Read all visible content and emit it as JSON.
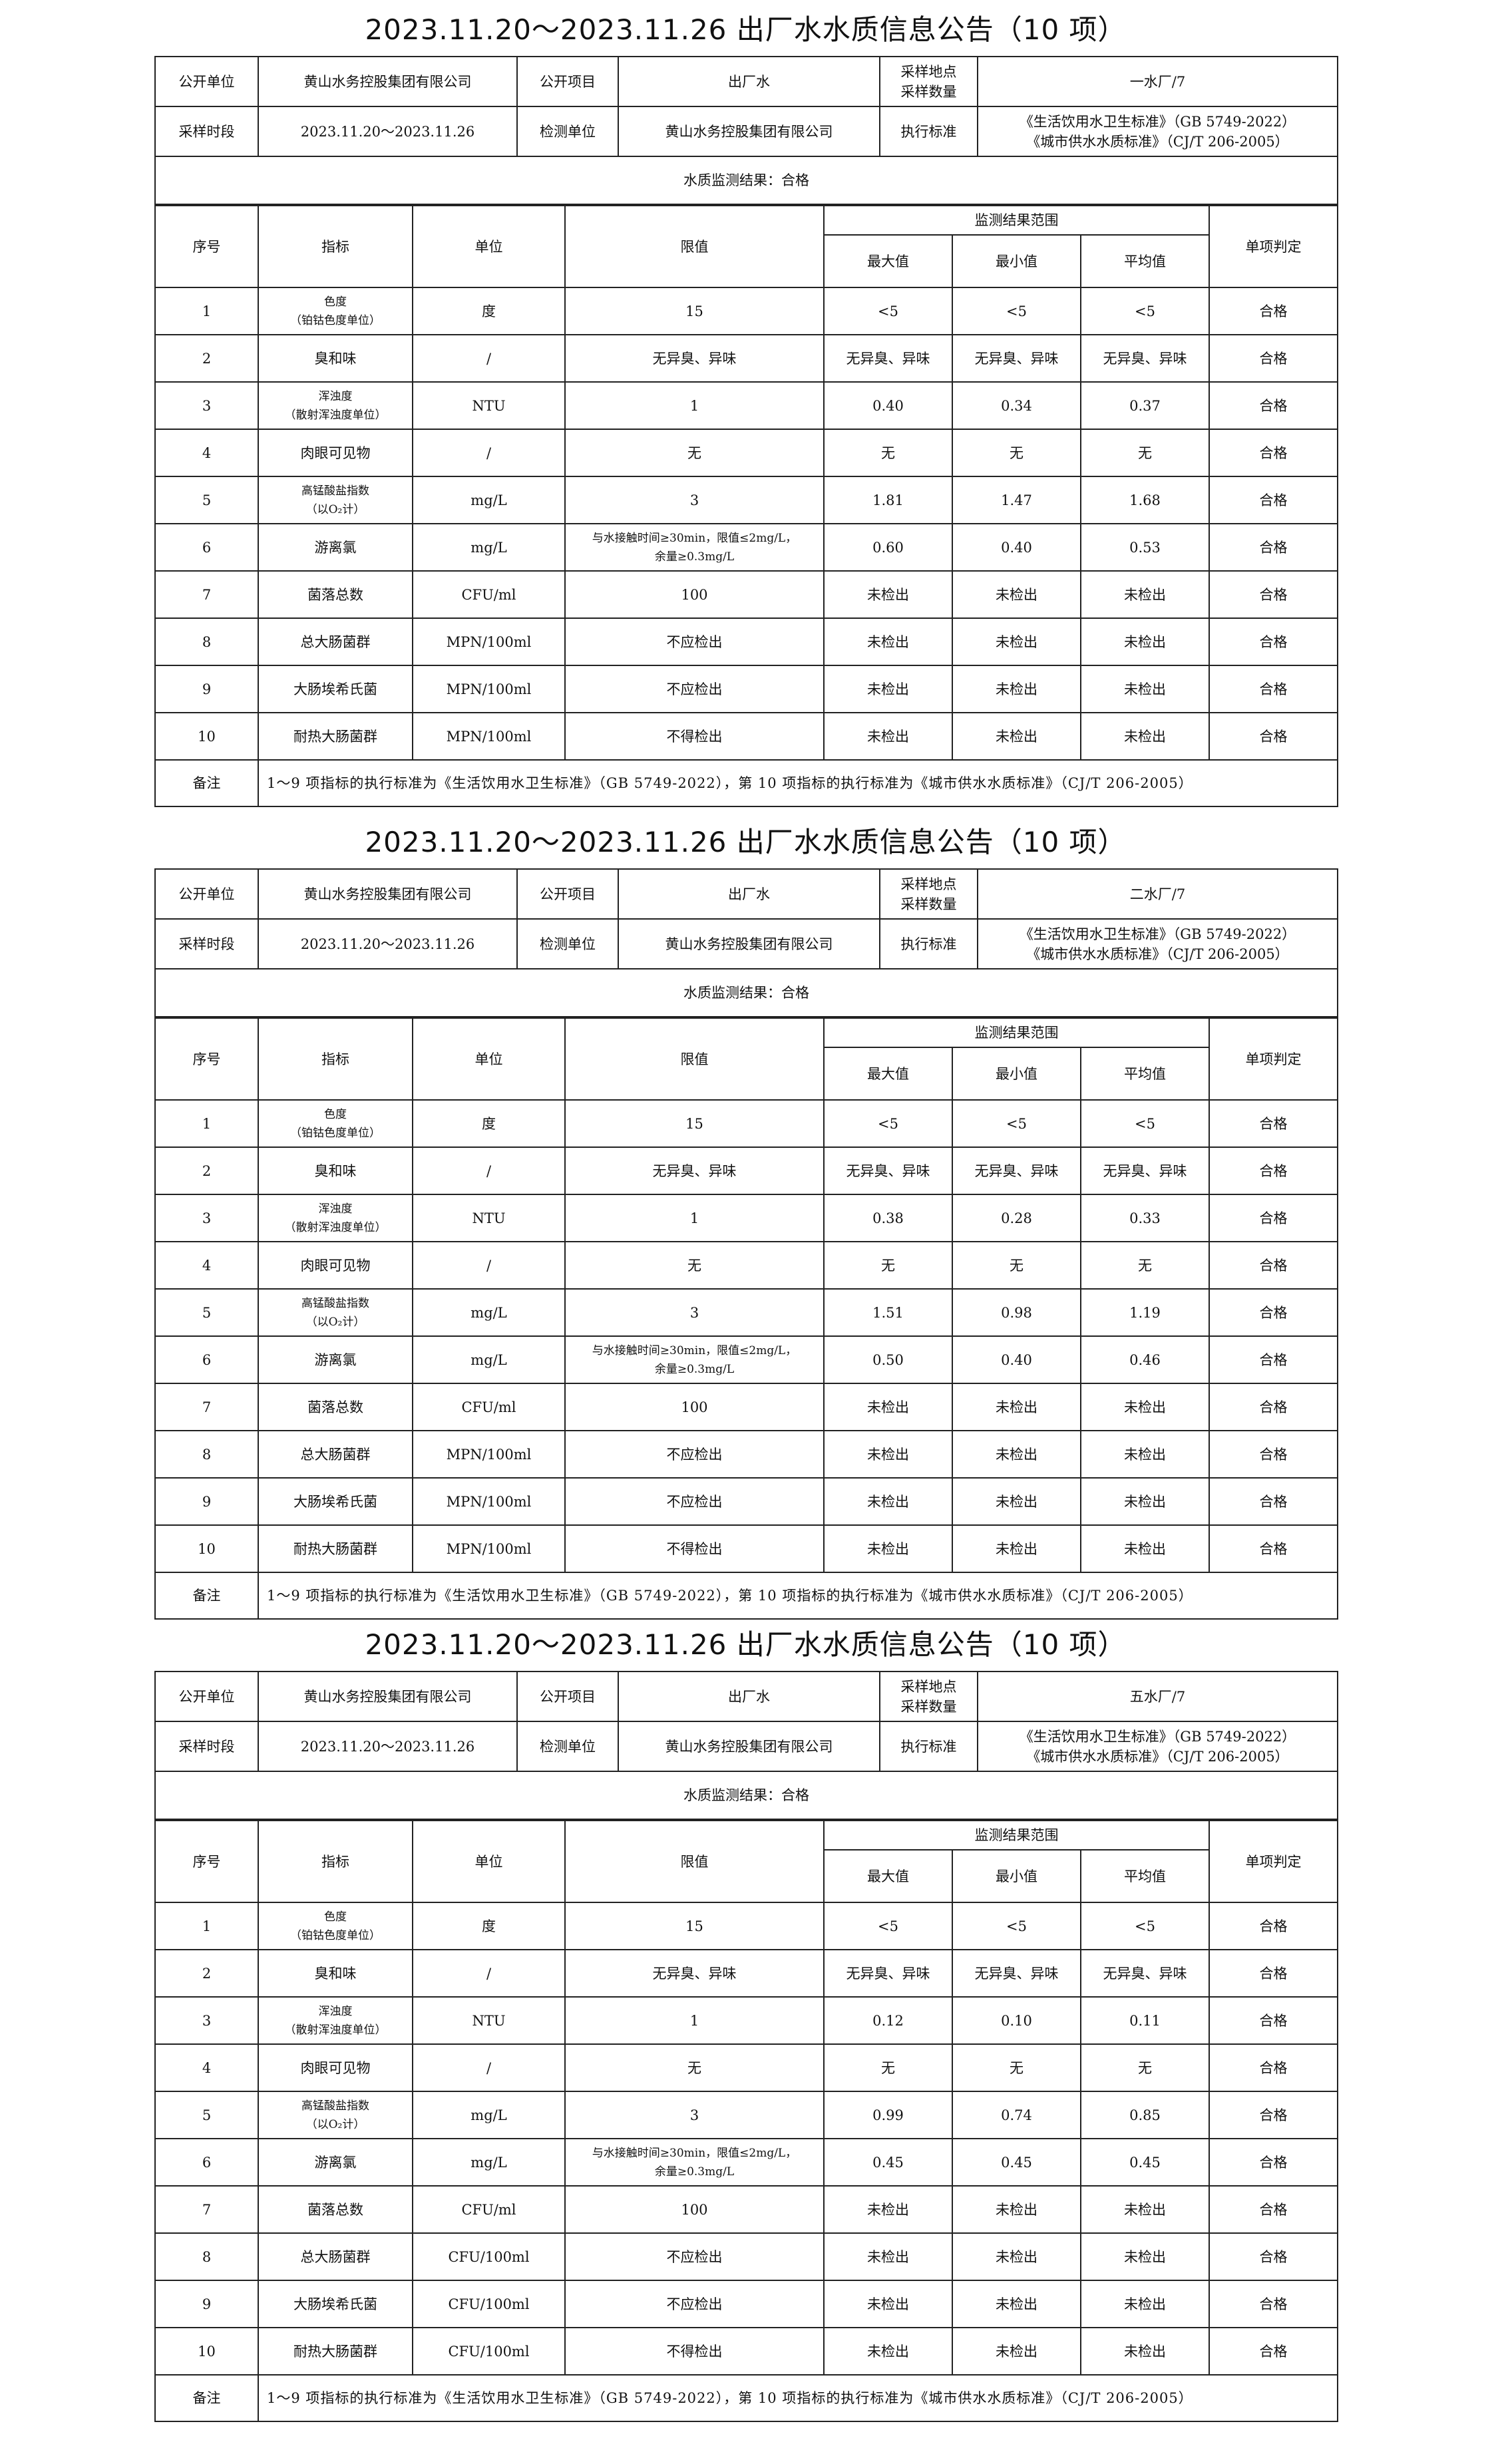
{
  "reports": [
    {
      "title": "2023.11.20～2023.11.26 出厂水水质信息公告（10 项）",
      "info": {
        "publish_unit_label": "公开单位",
        "publish_unit": "黄山水务控股集团有限公司",
        "publish_item_label": "公开项目",
        "publish_item": "出厂水",
        "sample_site_label": "采样地点\n采样数量",
        "sample_site": "一水厂/7",
        "sample_period_label": "采样时段",
        "sample_period": "2023.11.20～2023.11.26",
        "test_unit_label": "检测单位",
        "test_unit": "黄山水务控股集团有限公司",
        "standard_label": "执行标准",
        "standard": "《生活饮用水卫生标准》（GB 5749-2022）\n《城市供水水质标准》（CJ/T 206-2005）"
      },
      "result": "水质监测结果：合格",
      "headers": {
        "no": "序号",
        "indicator": "指标",
        "unit": "单位",
        "limit": "限值",
        "range": "监测结果范围",
        "max": "最大值",
        "min": "最小值",
        "avg": "平均值",
        "judge": "单项判定"
      },
      "rows": [
        [
          "1",
          "色度\n（铂钴色度单位）",
          "度",
          "15",
          "<5",
          "<5",
          "<5",
          "合格"
        ],
        [
          "2",
          "臭和味",
          "/",
          "无异臭、异味",
          "无异臭、异味",
          "无异臭、异味",
          "无异臭、异味",
          "合格"
        ],
        [
          "3",
          "浑浊度\n（散射浑浊度单位）",
          "NTU",
          "1",
          "0.40",
          "0.34",
          "0.37",
          "合格"
        ],
        [
          "4",
          "肉眼可见物",
          "/",
          "无",
          "无",
          "无",
          "无",
          "合格"
        ],
        [
          "5",
          "高锰酸盐指数\n（以O₂计）",
          "mg/L",
          "3",
          "1.81",
          "1.47",
          "1.68",
          "合格"
        ],
        [
          "6",
          "游离氯",
          "mg/L",
          "与水接触时间≥30min，限值≤2mg/L，\n余量≥0.3mg/L",
          "0.60",
          "0.40",
          "0.53",
          "合格"
        ],
        [
          "7",
          "菌落总数",
          "CFU/ml",
          "100",
          "未检出",
          "未检出",
          "未检出",
          "合格"
        ],
        [
          "8",
          "总大肠菌群",
          "MPN/100ml",
          "不应检出",
          "未检出",
          "未检出",
          "未检出",
          "合格"
        ],
        [
          "9",
          "大肠埃希氏菌",
          "MPN/100ml",
          "不应检出",
          "未检出",
          "未检出",
          "未检出",
          "合格"
        ],
        [
          "10",
          "耐热大肠菌群",
          "MPN/100ml",
          "不得检出",
          "未检出",
          "未检出",
          "未检出",
          "合格"
        ]
      ],
      "note_label": "备注",
      "note": "1～9 项指标的执行标准为《生活饮用水卫生标准》（GB 5749-2022），第 10 项指标的执行标准为《城市供水水质标准》（CJ/T 206-2005）"
    },
    {
      "title": "2023.11.20～2023.11.26 出厂水水质信息公告（10 项）",
      "info": {
        "publish_unit_label": "公开单位",
        "publish_unit": "黄山水务控股集团有限公司",
        "publish_item_label": "公开项目",
        "publish_item": "出厂水",
        "sample_site_label": "采样地点\n采样数量",
        "sample_site": "二水厂/7",
        "sample_period_label": "采样时段",
        "sample_period": "2023.11.20～2023.11.26",
        "test_unit_label": "检测单位",
        "test_unit": "黄山水务控股集团有限公司",
        "standard_label": "执行标准",
        "standard": "《生活饮用水卫生标准》（GB 5749-2022）\n《城市供水水质标准》（CJ/T 206-2005）"
      },
      "result": "水质监测结果：合格",
      "headers": {
        "no": "序号",
        "indicator": "指标",
        "unit": "单位",
        "limit": "限值",
        "range": "监测结果范围",
        "max": "最大值",
        "min": "最小值",
        "avg": "平均值",
        "judge": "单项判定"
      },
      "rows": [
        [
          "1",
          "色度\n（铂钴色度单位）",
          "度",
          "15",
          "<5",
          "<5",
          "<5",
          "合格"
        ],
        [
          "2",
          "臭和味",
          "/",
          "无异臭、异味",
          "无异臭、异味",
          "无异臭、异味",
          "无异臭、异味",
          "合格"
        ],
        [
          "3",
          "浑浊度\n（散射浑浊度单位）",
          "NTU",
          "1",
          "0.38",
          "0.28",
          "0.33",
          "合格"
        ],
        [
          "4",
          "肉眼可见物",
          "/",
          "无",
          "无",
          "无",
          "无",
          "合格"
        ],
        [
          "5",
          "高锰酸盐指数\n（以O₂计）",
          "mg/L",
          "3",
          "1.51",
          "0.98",
          "1.19",
          "合格"
        ],
        [
          "6",
          "游离氯",
          "mg/L",
          "与水接触时间≥30min，限值≤2mg/L，\n余量≥0.3mg/L",
          "0.50",
          "0.40",
          "0.46",
          "合格"
        ],
        [
          "7",
          "菌落总数",
          "CFU/ml",
          "100",
          "未检出",
          "未检出",
          "未检出",
          "合格"
        ],
        [
          "8",
          "总大肠菌群",
          "MPN/100ml",
          "不应检出",
          "未检出",
          "未检出",
          "未检出",
          "合格"
        ],
        [
          "9",
          "大肠埃希氏菌",
          "MPN/100ml",
          "不应检出",
          "未检出",
          "未检出",
          "未检出",
          "合格"
        ],
        [
          "10",
          "耐热大肠菌群",
          "MPN/100ml",
          "不得检出",
          "未检出",
          "未检出",
          "未检出",
          "合格"
        ]
      ],
      "note_label": "备注",
      "note": "1～9 项指标的执行标准为《生活饮用水卫生标准》（GB 5749-2022），第 10 项指标的执行标准为《城市供水水质标准》（CJ/T 206-2005）"
    },
    {
      "title": "2023.11.20～2023.11.26 出厂水水质信息公告（10 项）",
      "info": {
        "publish_unit_label": "公开单位",
        "publish_unit": "黄山水务控股集团有限公司",
        "publish_item_label": "公开项目",
        "publish_item": "出厂水",
        "sample_site_label": "采样地点\n采样数量",
        "sample_site": "五水厂/7",
        "sample_period_label": "采样时段",
        "sample_period": "2023.11.20～2023.11.26",
        "test_unit_label": "检测单位",
        "test_unit": "黄山水务控股集团有限公司",
        "standard_label": "执行标准",
        "standard": "《生活饮用水卫生标准》（GB 5749-2022）\n《城市供水水质标准》（CJ/T 206-2005）"
      },
      "result": "水质监测结果：合格",
      "headers": {
        "no": "序号",
        "indicator": "指标",
        "unit": "单位",
        "limit": "限值",
        "range": "监测结果范围",
        "max": "最大值",
        "min": "最小值",
        "avg": "平均值",
        "judge": "单项判定"
      },
      "rows": [
        [
          "1",
          "色度\n（铂钴色度单位）",
          "度",
          "15",
          "<5",
          "<5",
          "<5",
          "合格"
        ],
        [
          "2",
          "臭和味",
          "/",
          "无异臭、异味",
          "无异臭、异味",
          "无异臭、异味",
          "无异臭、异味",
          "合格"
        ],
        [
          "3",
          "浑浊度\n（散射浑浊度单位）",
          "NTU",
          "1",
          "0.12",
          "0.10",
          "0.11",
          "合格"
        ],
        [
          "4",
          "肉眼可见物",
          "/",
          "无",
          "无",
          "无",
          "无",
          "合格"
        ],
        [
          "5",
          "高锰酸盐指数\n（以O₂计）",
          "mg/L",
          "3",
          "0.99",
          "0.74",
          "0.85",
          "合格"
        ],
        [
          "6",
          "游离氯",
          "mg/L",
          "与水接触时间≥30min，限值≤2mg/L，\n余量≥0.3mg/L",
          "0.45",
          "0.45",
          "0.45",
          "合格"
        ],
        [
          "7",
          "菌落总数",
          "CFU/ml",
          "100",
          "未检出",
          "未检出",
          "未检出",
          "合格"
        ],
        [
          "8",
          "总大肠菌群",
          "CFU/100ml",
          "不应检出",
          "未检出",
          "未检出",
          "未检出",
          "合格"
        ],
        [
          "9",
          "大肠埃希氏菌",
          "CFU/100ml",
          "不应检出",
          "未检出",
          "未检出",
          "未检出",
          "合格"
        ],
        [
          "10",
          "耐热大肠菌群",
          "CFU/100ml",
          "不得检出",
          "未检出",
          "未检出",
          "未检出",
          "合格"
        ]
      ],
      "note_label": "备注",
      "note": "1～9 项指标的执行标准为《生活饮用水卫生标准》（GB 5749-2022），第 10 项指标的执行标准为《城市供水水质标准》（CJ/T 206-2005）"
    }
  ]
}
